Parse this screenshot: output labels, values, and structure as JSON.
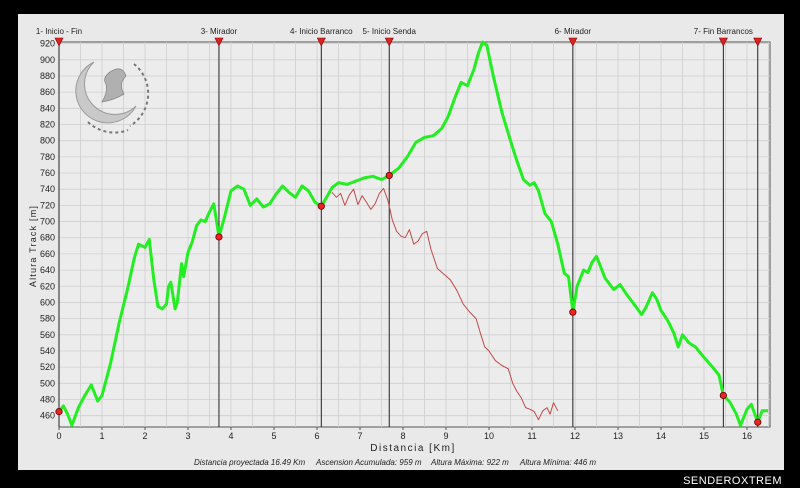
{
  "chart_data": {
    "type": "line",
    "xlabel": "Distancia [Km]",
    "ylabel": "Altura Track [m]",
    "xlim": [
      0,
      16.49
    ],
    "ylim": [
      446,
      922
    ],
    "x_ticks": [
      "0",
      "1",
      "2",
      "3",
      "4",
      "5",
      "6",
      "7",
      "8",
      "9",
      "10",
      "11",
      "12",
      "13",
      "14",
      "15",
      "16"
    ],
    "y_ticks": [
      "460",
      "480",
      "500",
      "520",
      "540",
      "560",
      "580",
      "600",
      "620",
      "640",
      "660",
      "680",
      "700",
      "720",
      "740",
      "760",
      "780",
      "800",
      "820",
      "840",
      "860",
      "880",
      "900",
      "920"
    ],
    "waypoints": [
      {
        "label": "1- Inicio - Fin",
        "x": 0.0,
        "y": 465
      },
      {
        "label": "3- Mirador",
        "x": 3.72,
        "y": 681
      },
      {
        "label": "4- Inicio Barranco",
        "x": 6.1,
        "y": 719
      },
      {
        "label": "5- Inicio Senda",
        "x": 7.68,
        "y": 757
      },
      {
        "label": "6- Mirador",
        "x": 11.95,
        "y": 588
      },
      {
        "label": "7- Fin Barrancos",
        "x": 15.45,
        "y": 485
      },
      {
        "label": "",
        "x": 16.25,
        "y": 452
      }
    ],
    "series": [
      {
        "color": "#22ee22",
        "points": [
          [
            0.0,
            465
          ],
          [
            0.1,
            472
          ],
          [
            0.2,
            462
          ],
          [
            0.3,
            448
          ],
          [
            0.45,
            470
          ],
          [
            0.6,
            485
          ],
          [
            0.75,
            498
          ],
          [
            0.9,
            478
          ],
          [
            1.0,
            485
          ],
          [
            1.2,
            525
          ],
          [
            1.4,
            575
          ],
          [
            1.6,
            618
          ],
          [
            1.75,
            655
          ],
          [
            1.85,
            672
          ],
          [
            2.0,
            668
          ],
          [
            2.1,
            678
          ],
          [
            2.2,
            630
          ],
          [
            2.3,
            595
          ],
          [
            2.4,
            592
          ],
          [
            2.5,
            598
          ],
          [
            2.55,
            620
          ],
          [
            2.6,
            625
          ],
          [
            2.7,
            592
          ],
          [
            2.75,
            600
          ],
          [
            2.85,
            648
          ],
          [
            2.9,
            632
          ],
          [
            3.0,
            662
          ],
          [
            3.1,
            675
          ],
          [
            3.2,
            695
          ],
          [
            3.3,
            702
          ],
          [
            3.4,
            700
          ],
          [
            3.5,
            712
          ],
          [
            3.6,
            722
          ],
          [
            3.72,
            681
          ],
          [
            3.85,
            706
          ],
          [
            4.0,
            738
          ],
          [
            4.15,
            744
          ],
          [
            4.3,
            740
          ],
          [
            4.45,
            720
          ],
          [
            4.6,
            728
          ],
          [
            4.75,
            718
          ],
          [
            4.9,
            722
          ],
          [
            5.05,
            734
          ],
          [
            5.2,
            744
          ],
          [
            5.35,
            736
          ],
          [
            5.5,
            730
          ],
          [
            5.65,
            744
          ],
          [
            5.8,
            738
          ],
          [
            5.95,
            724
          ],
          [
            6.1,
            719
          ],
          [
            6.2,
            728
          ],
          [
            6.35,
            742
          ],
          [
            6.5,
            748
          ],
          [
            6.7,
            746
          ],
          [
            6.9,
            750
          ],
          [
            7.1,
            754
          ],
          [
            7.3,
            756
          ],
          [
            7.5,
            752
          ],
          [
            7.68,
            757
          ],
          [
            7.9,
            766
          ],
          [
            8.1,
            780
          ],
          [
            8.3,
            798
          ],
          [
            8.5,
            804
          ],
          [
            8.7,
            806
          ],
          [
            8.9,
            815
          ],
          [
            9.05,
            830
          ],
          [
            9.2,
            852
          ],
          [
            9.35,
            872
          ],
          [
            9.5,
            868
          ],
          [
            9.65,
            888
          ],
          [
            9.75,
            908
          ],
          [
            9.85,
            922
          ],
          [
            9.95,
            918
          ],
          [
            10.1,
            880
          ],
          [
            10.3,
            835
          ],
          [
            10.5,
            800
          ],
          [
            10.65,
            775
          ],
          [
            10.8,
            752
          ],
          [
            10.95,
            745
          ],
          [
            11.05,
            748
          ],
          [
            11.15,
            738
          ],
          [
            11.3,
            710
          ],
          [
            11.45,
            700
          ],
          [
            11.6,
            672
          ],
          [
            11.75,
            636
          ],
          [
            11.85,
            632
          ],
          [
            11.95,
            588
          ],
          [
            12.05,
            620
          ],
          [
            12.2,
            640
          ],
          [
            12.3,
            637
          ],
          [
            12.4,
            650
          ],
          [
            12.5,
            657
          ],
          [
            12.7,
            630
          ],
          [
            12.9,
            616
          ],
          [
            13.05,
            622
          ],
          [
            13.2,
            610
          ],
          [
            13.4,
            596
          ],
          [
            13.55,
            585
          ],
          [
            13.65,
            594
          ],
          [
            13.8,
            612
          ],
          [
            13.9,
            604
          ],
          [
            14.0,
            590
          ],
          [
            14.15,
            578
          ],
          [
            14.3,
            562
          ],
          [
            14.4,
            545
          ],
          [
            14.5,
            560
          ],
          [
            14.65,
            550
          ],
          [
            14.8,
            545
          ],
          [
            15.0,
            532
          ],
          [
            15.2,
            520
          ],
          [
            15.35,
            510
          ],
          [
            15.45,
            485
          ],
          [
            15.6,
            477
          ],
          [
            15.75,
            462
          ],
          [
            15.85,
            448
          ],
          [
            16.0,
            468
          ],
          [
            16.1,
            474
          ],
          [
            16.25,
            452
          ],
          [
            16.35,
            466
          ],
          [
            16.49,
            466
          ]
        ]
      },
      {
        "color": "#c04a4a",
        "points": [
          [
            6.35,
            736
          ],
          [
            6.45,
            730
          ],
          [
            6.55,
            735
          ],
          [
            6.65,
            720
          ],
          [
            6.75,
            733
          ],
          [
            6.85,
            740
          ],
          [
            6.95,
            721
          ],
          [
            7.05,
            732
          ],
          [
            7.15,
            724
          ],
          [
            7.25,
            715
          ],
          [
            7.35,
            722
          ],
          [
            7.45,
            735
          ],
          [
            7.55,
            741
          ],
          [
            7.65,
            726
          ],
          [
            7.75,
            702
          ],
          [
            7.85,
            688
          ],
          [
            7.95,
            682
          ],
          [
            8.05,
            680
          ],
          [
            8.15,
            690
          ],
          [
            8.25,
            672
          ],
          [
            8.35,
            676
          ],
          [
            8.45,
            685
          ],
          [
            8.55,
            688
          ],
          [
            8.65,
            666
          ],
          [
            8.8,
            642
          ],
          [
            8.95,
            635
          ],
          [
            9.1,
            628
          ],
          [
            9.25,
            615
          ],
          [
            9.4,
            598
          ],
          [
            9.55,
            588
          ],
          [
            9.7,
            580
          ],
          [
            9.8,
            562
          ],
          [
            9.9,
            545
          ],
          [
            10.0,
            540
          ],
          [
            10.15,
            528
          ],
          [
            10.3,
            522
          ],
          [
            10.45,
            518
          ],
          [
            10.55,
            500
          ],
          [
            10.65,
            490
          ],
          [
            10.75,
            482
          ],
          [
            10.85,
            470
          ],
          [
            10.95,
            468
          ],
          [
            11.05,
            465
          ],
          [
            11.15,
            455
          ],
          [
            11.25,
            466
          ],
          [
            11.35,
            470
          ],
          [
            11.42,
            462
          ],
          [
            11.5,
            476
          ],
          [
            11.6,
            466
          ]
        ]
      }
    ],
    "stats": {
      "distance": "Distancia proyectada 16.49 Km",
      "ascent": "Ascension Acumulada: 959 m",
      "max_alt": "Altura Máxima: 922 m",
      "min_alt": "Altura Mínima: 446 m"
    }
  },
  "brand": "SENDEROXTREM",
  "logo_icon": "circular-track-logo-icon"
}
